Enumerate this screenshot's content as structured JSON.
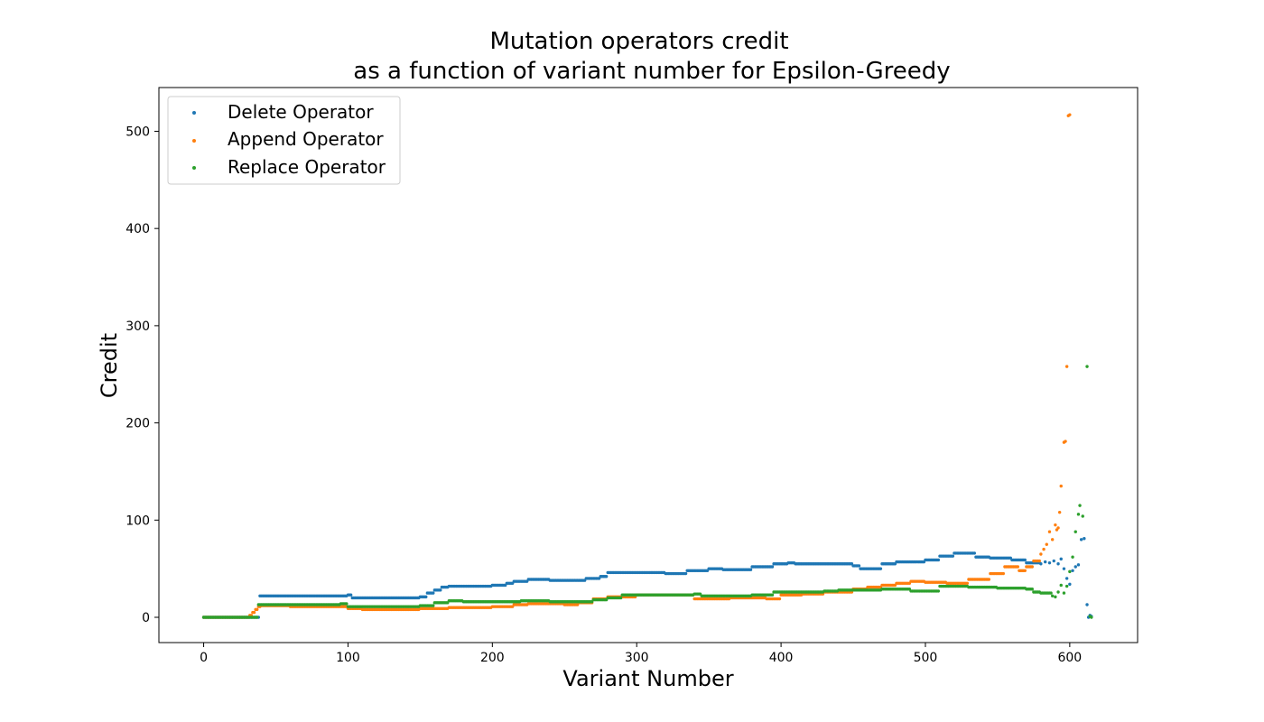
{
  "chart_data": {
    "type": "scatter",
    "title": [
      "Mutation operators credit",
      "as a function of variant number for Epsilon-Greedy"
    ],
    "xlabel": "Variant Number",
    "ylabel": "Credit",
    "xlim": [
      -31,
      647
    ],
    "ylim": [
      -26,
      545
    ],
    "xticks": [
      0,
      100,
      200,
      300,
      400,
      500,
      600
    ],
    "yticks": [
      0,
      100,
      200,
      300,
      400,
      500
    ],
    "grid": false,
    "legend_position": "top-left",
    "series": [
      {
        "name": "Delete Operator",
        "color": "#1f77b4",
        "steps": [
          [
            0,
            0
          ],
          [
            39,
            22
          ],
          [
            100,
            23
          ],
          [
            103,
            20
          ],
          [
            150,
            21
          ],
          [
            155,
            25
          ],
          [
            160,
            28
          ],
          [
            165,
            31
          ],
          [
            170,
            32
          ],
          [
            200,
            33
          ],
          [
            210,
            35
          ],
          [
            215,
            37
          ],
          [
            225,
            39
          ],
          [
            240,
            38
          ],
          [
            265,
            40
          ],
          [
            275,
            42
          ],
          [
            280,
            46
          ],
          [
            290,
            46
          ],
          [
            320,
            45
          ],
          [
            335,
            48
          ],
          [
            350,
            50
          ],
          [
            360,
            49
          ],
          [
            380,
            52
          ],
          [
            395,
            55
          ],
          [
            405,
            56
          ],
          [
            410,
            55
          ],
          [
            450,
            53
          ],
          [
            455,
            50
          ],
          [
            470,
            55
          ],
          [
            480,
            57
          ],
          [
            500,
            59
          ],
          [
            510,
            63
          ],
          [
            520,
            66
          ],
          [
            535,
            62
          ],
          [
            545,
            61
          ],
          [
            560,
            59
          ],
          [
            570,
            56
          ]
        ],
        "end_x": 580,
        "tail": [
          [
            580,
            55
          ],
          [
            583,
            57
          ],
          [
            586,
            56
          ],
          [
            589,
            58
          ],
          [
            592,
            55
          ],
          [
            594,
            60
          ],
          [
            596,
            50
          ],
          [
            598,
            40
          ],
          [
            600,
            34
          ],
          [
            602,
            48
          ],
          [
            604,
            52
          ],
          [
            606,
            54
          ],
          [
            608,
            80
          ],
          [
            610,
            81
          ],
          [
            612,
            13
          ],
          [
            613,
            0
          ],
          [
            614,
            2
          ],
          [
            615,
            1
          ]
        ]
      },
      {
        "name": "Append Operator",
        "color": "#ff7f0e",
        "steps": [
          [
            0,
            0
          ],
          [
            32,
            2
          ],
          [
            34,
            5
          ],
          [
            36,
            8
          ],
          [
            38,
            11
          ],
          [
            40,
            12
          ],
          [
            60,
            11
          ],
          [
            100,
            9
          ],
          [
            110,
            8
          ],
          [
            150,
            9
          ],
          [
            170,
            10
          ],
          [
            200,
            11
          ],
          [
            215,
            13
          ],
          [
            225,
            14
          ],
          [
            250,
            13
          ],
          [
            260,
            15
          ],
          [
            270,
            19
          ],
          [
            280,
            21
          ],
          [
            300,
            23
          ],
          [
            340,
            19
          ],
          [
            365,
            20
          ],
          [
            390,
            19
          ],
          [
            400,
            23
          ],
          [
            415,
            24
          ],
          [
            430,
            26
          ],
          [
            450,
            29
          ],
          [
            460,
            31
          ],
          [
            470,
            33
          ],
          [
            480,
            35
          ],
          [
            490,
            37
          ],
          [
            500,
            36
          ],
          [
            515,
            35
          ],
          [
            530,
            39
          ],
          [
            545,
            45
          ],
          [
            555,
            52
          ],
          [
            565,
            48
          ],
          [
            570,
            52
          ],
          [
            575,
            58
          ]
        ],
        "end_x": 580,
        "tail": [
          [
            580,
            65
          ],
          [
            582,
            70
          ],
          [
            584,
            75
          ],
          [
            586,
            88
          ],
          [
            588,
            80
          ],
          [
            590,
            95
          ],
          [
            591,
            90
          ],
          [
            592,
            92
          ],
          [
            593,
            108
          ],
          [
            594,
            135
          ],
          [
            596,
            180
          ],
          [
            597,
            181
          ],
          [
            598,
            258
          ],
          [
            599,
            516
          ],
          [
            600,
            517
          ]
        ]
      },
      {
        "name": "Replace Operator",
        "color": "#2ca02c",
        "steps": [
          [
            0,
            0
          ],
          [
            38,
            13
          ],
          [
            70,
            13
          ],
          [
            95,
            14
          ],
          [
            100,
            11
          ],
          [
            150,
            12
          ],
          [
            160,
            15
          ],
          [
            170,
            17
          ],
          [
            180,
            16
          ],
          [
            220,
            17
          ],
          [
            240,
            16
          ],
          [
            270,
            18
          ],
          [
            280,
            20
          ],
          [
            290,
            23
          ],
          [
            300,
            23
          ],
          [
            340,
            24
          ],
          [
            345,
            22
          ],
          [
            380,
            23
          ],
          [
            395,
            26
          ],
          [
            410,
            26
          ],
          [
            430,
            27
          ],
          [
            440,
            28
          ],
          [
            470,
            29
          ],
          [
            490,
            27
          ],
          [
            500,
            27
          ],
          [
            510,
            32
          ],
          [
            530,
            31
          ],
          [
            550,
            30
          ],
          [
            570,
            29
          ],
          [
            575,
            26
          ],
          [
            580,
            25
          ]
        ],
        "end_x": 588,
        "tail": [
          [
            588,
            22
          ],
          [
            590,
            21
          ],
          [
            592,
            26
          ],
          [
            594,
            33
          ],
          [
            596,
            25
          ],
          [
            598,
            32
          ],
          [
            600,
            47
          ],
          [
            602,
            62
          ],
          [
            604,
            88
          ],
          [
            606,
            106
          ],
          [
            607,
            115
          ],
          [
            609,
            104
          ],
          [
            612,
            258
          ],
          [
            614,
            1
          ],
          [
            615,
            0
          ]
        ]
      }
    ]
  }
}
